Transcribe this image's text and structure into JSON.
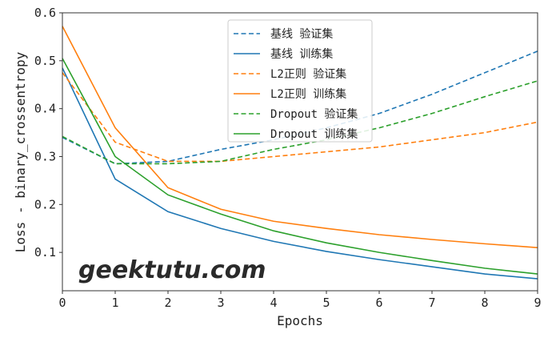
{
  "chart_data": {
    "type": "line",
    "xlabel": "Epochs",
    "ylabel": "Loss - binary_crossentropy",
    "xlim": [
      0,
      9
    ],
    "ylim": [
      0.02,
      0.6
    ],
    "xticks": [
      "0",
      "1",
      "2",
      "3",
      "4",
      "5",
      "6",
      "7",
      "8",
      "9"
    ],
    "yticks": [
      "0.1",
      "0.2",
      "0.3",
      "0.4",
      "0.5",
      "0.6"
    ],
    "grid": false,
    "legend_position": "top-center",
    "x": [
      0,
      1,
      2,
      3,
      4,
      5,
      6,
      7,
      8,
      9
    ],
    "series": [
      {
        "name": "基线 验证集",
        "color": "#1f77b4",
        "dashed": true,
        "values": [
          0.34,
          0.285,
          0.29,
          0.315,
          0.335,
          0.36,
          0.39,
          0.43,
          0.475,
          0.52
        ]
      },
      {
        "name": "基线 训练集",
        "color": "#1f77b4",
        "dashed": false,
        "values": [
          0.485,
          0.253,
          0.185,
          0.15,
          0.123,
          0.102,
          0.085,
          0.07,
          0.055,
          0.045
        ]
      },
      {
        "name": "L2正则 验证集",
        "color": "#ff7f0e",
        "dashed": true,
        "values": [
          0.475,
          0.33,
          0.29,
          0.29,
          0.3,
          0.31,
          0.32,
          0.335,
          0.35,
          0.372
        ]
      },
      {
        "name": "L2正则 训练集",
        "color": "#ff7f0e",
        "dashed": false,
        "values": [
          0.572,
          0.36,
          0.235,
          0.19,
          0.165,
          0.15,
          0.137,
          0.127,
          0.118,
          0.11
        ]
      },
      {
        "name": "Dropout 验证集",
        "color": "#2ca02c",
        "dashed": true,
        "values": [
          0.342,
          0.285,
          0.285,
          0.29,
          0.315,
          0.335,
          0.36,
          0.39,
          0.425,
          0.458
        ]
      },
      {
        "name": "Dropout 训练集",
        "color": "#2ca02c",
        "dashed": false,
        "values": [
          0.505,
          0.3,
          0.22,
          0.18,
          0.145,
          0.12,
          0.1,
          0.083,
          0.067,
          0.055
        ]
      }
    ]
  },
  "watermark": "geektutu.com"
}
